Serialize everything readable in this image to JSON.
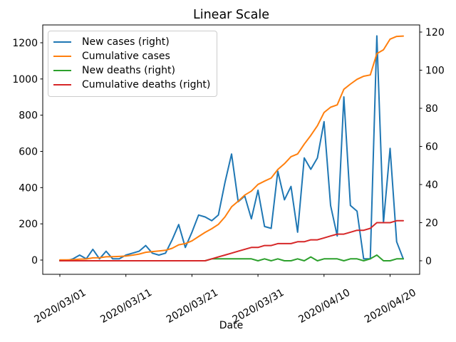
{
  "title": "Linear Scale",
  "xlabel": "Date",
  "chart_data": {
    "type": "line",
    "title": "Linear Scale",
    "xlabel": "Date",
    "ylabel_left": "",
    "ylabel_right": "",
    "grid": false,
    "legend_position": "upper left",
    "x": [
      "2020/03/01",
      "2020/03/02",
      "2020/03/03",
      "2020/03/04",
      "2020/03/05",
      "2020/03/06",
      "2020/03/07",
      "2020/03/08",
      "2020/03/09",
      "2020/03/10",
      "2020/03/11",
      "2020/03/12",
      "2020/03/13",
      "2020/03/14",
      "2020/03/15",
      "2020/03/16",
      "2020/03/17",
      "2020/03/18",
      "2020/03/19",
      "2020/03/20",
      "2020/03/21",
      "2020/03/22",
      "2020/03/23",
      "2020/03/24",
      "2020/03/25",
      "2020/03/26",
      "2020/03/27",
      "2020/03/28",
      "2020/03/29",
      "2020/03/30",
      "2020/03/31",
      "2020/04/01",
      "2020/04/02",
      "2020/04/03",
      "2020/04/04",
      "2020/04/05",
      "2020/04/06",
      "2020/04/07",
      "2020/04/08",
      "2020/04/09",
      "2020/04/10",
      "2020/04/11",
      "2020/04/12",
      "2020/04/13",
      "2020/04/14",
      "2020/04/15",
      "2020/04/16",
      "2020/04/17",
      "2020/04/18",
      "2020/04/19",
      "2020/04/20",
      "2020/04/21",
      "2020/04/22"
    ],
    "x_tick_indices": [
      0,
      10,
      20,
      30,
      40,
      50
    ],
    "x_tick_labels": [
      "2020/03/01",
      "2020/03/11",
      "2020/03/21",
      "2020/03/31",
      "2020/04/10",
      "2020/04/20"
    ],
    "left_axis": {
      "ticks": [
        0,
        200,
        400,
        600,
        800,
        1000,
        1200
      ],
      "range": [
        0,
        1237
      ]
    },
    "right_axis": {
      "ticks": [
        0,
        20,
        40,
        60,
        80,
        100,
        120
      ],
      "range": [
        0,
        118
      ]
    },
    "series": [
      {
        "name": "New cases (right)",
        "axis": "right",
        "color": "#1f77b4",
        "values": [
          0,
          0,
          1,
          3,
          1,
          6,
          1,
          5,
          1,
          1,
          3,
          4,
          5,
          8,
          4,
          3,
          4,
          11,
          19,
          7,
          15,
          24,
          23,
          21,
          24,
          41,
          56,
          31,
          34,
          22,
          37,
          18,
          17,
          47,
          32,
          39,
          15,
          54,
          48,
          54,
          73,
          29,
          13,
          86,
          29,
          26,
          1,
          1,
          118,
          20,
          59,
          10,
          1
        ]
      },
      {
        "name": "Cumulative cases",
        "axis": "left",
        "color": "#ff7f0e",
        "values": [
          1,
          1,
          2,
          5,
          6,
          12,
          13,
          18,
          19,
          20,
          22,
          27,
          33,
          43,
          47,
          50,
          54,
          65,
          84,
          91,
          106,
          130,
          153,
          173,
          197,
          238,
          294,
          325,
          359,
          381,
          418,
          436,
          453,
          500,
          532,
          571,
          586,
          640,
          688,
          742,
          815,
          844,
          857,
          943,
          972,
          998,
          1015,
          1022,
          1140,
          1161,
          1220,
          1235,
          1237
        ]
      },
      {
        "name": "New deaths (right)",
        "axis": "right",
        "color": "#2ca02c",
        "values": [
          0,
          0,
          0,
          0,
          0,
          0,
          0,
          0,
          0,
          0,
          0,
          0,
          0,
          0,
          0,
          0,
          0,
          0,
          0,
          0,
          0,
          0,
          0,
          1,
          1,
          1,
          1,
          1,
          1,
          1,
          0,
          1,
          0,
          1,
          0,
          0,
          1,
          0,
          2,
          0,
          1,
          1,
          1,
          0,
          1,
          1,
          0,
          1,
          3,
          0,
          0,
          1,
          1
        ]
      },
      {
        "name": "Cumulative deaths (right)",
        "axis": "right",
        "color": "#d62728",
        "values": [
          0,
          0,
          0,
          0,
          0,
          0,
          0,
          0,
          0,
          0,
          0,
          0,
          0,
          0,
          0,
          0,
          0,
          0,
          0,
          0,
          0,
          0,
          0,
          1,
          2,
          3,
          4,
          5,
          6,
          7,
          7,
          8,
          8,
          9,
          9,
          9,
          10,
          10,
          11,
          11,
          12,
          13,
          14,
          14,
          15,
          16,
          16,
          17,
          20,
          20,
          20,
          21,
          21
        ]
      }
    ]
  }
}
